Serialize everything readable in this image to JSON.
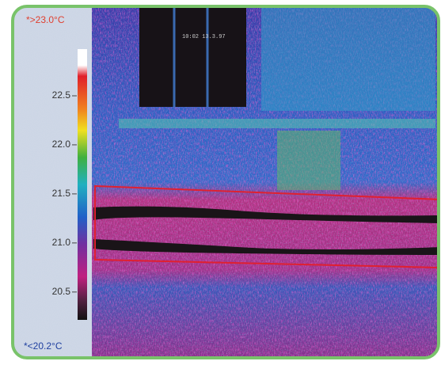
{
  "scale": {
    "max_label": "*>23.0°C",
    "min_label": "*<20.2°C",
    "range": [
      20.2,
      23.0
    ],
    "ticks": [
      {
        "value": 22.5,
        "label": "22.5"
      },
      {
        "value": 22,
        "label": "22.0"
      },
      {
        "value": 21.5,
        "label": "21.5"
      },
      {
        "value": 21,
        "label": "21.0"
      },
      {
        "value": 20.5,
        "label": "20.5"
      }
    ]
  },
  "image_text": "10:02 13.3.97"
}
